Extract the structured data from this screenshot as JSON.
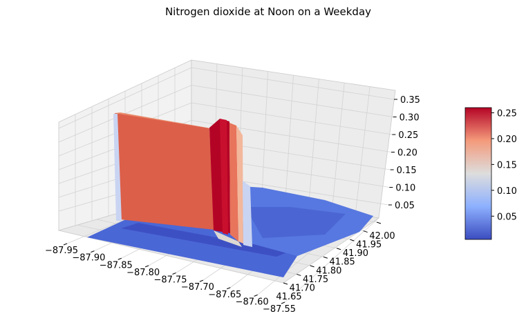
{
  "chart_data": {
    "type": "surface3d",
    "title": "Nitrogen dioxide at Noon on a Weekday",
    "xlabel": "",
    "ylabel": "",
    "zlabel": "",
    "x_ticks": [
      "−87.95",
      "−87.90",
      "−87.85",
      "−87.80",
      "−87.75",
      "−87.70",
      "−87.65",
      "−87.60",
      "−87.55"
    ],
    "y_ticks": [
      "41.65",
      "41.70",
      "41.75",
      "41.80",
      "41.85",
      "41.90",
      "41.95",
      "42.00"
    ],
    "z_ticks": [
      "0.05",
      "0.10",
      "0.15",
      "0.20",
      "0.25",
      "0.30",
      "0.35"
    ],
    "colorbar_ticks": [
      "0.05",
      "0.10",
      "0.15",
      "0.20",
      "0.25"
    ],
    "colormap": "coolwarm",
    "colors": {
      "low": "#3b4cc0",
      "mid": "#dddddd",
      "high": "#b40426",
      "plateau": "#dc5f4a"
    },
    "xlim": [
      -87.95,
      -87.55
    ],
    "ylim": [
      41.65,
      42.0
    ],
    "zlim": [
      0.0,
      0.35
    ],
    "colorbar_range": [
      0.005,
      0.26
    ],
    "baseline_value": 0.03,
    "features": [
      {
        "name": "plateau",
        "x_range": [
          -87.93,
          -87.74
        ],
        "y_range": [
          41.7,
          41.98
        ],
        "value": 0.23
      },
      {
        "name": "ridge",
        "x_range": [
          -87.74,
          -87.715
        ],
        "y_range": [
          41.7,
          41.98
        ],
        "value": 0.25
      },
      {
        "name": "shoulder",
        "x_range": [
          -87.715,
          -87.705
        ],
        "y_range": [
          41.7,
          41.98
        ],
        "value": 0.19
      }
    ]
  }
}
